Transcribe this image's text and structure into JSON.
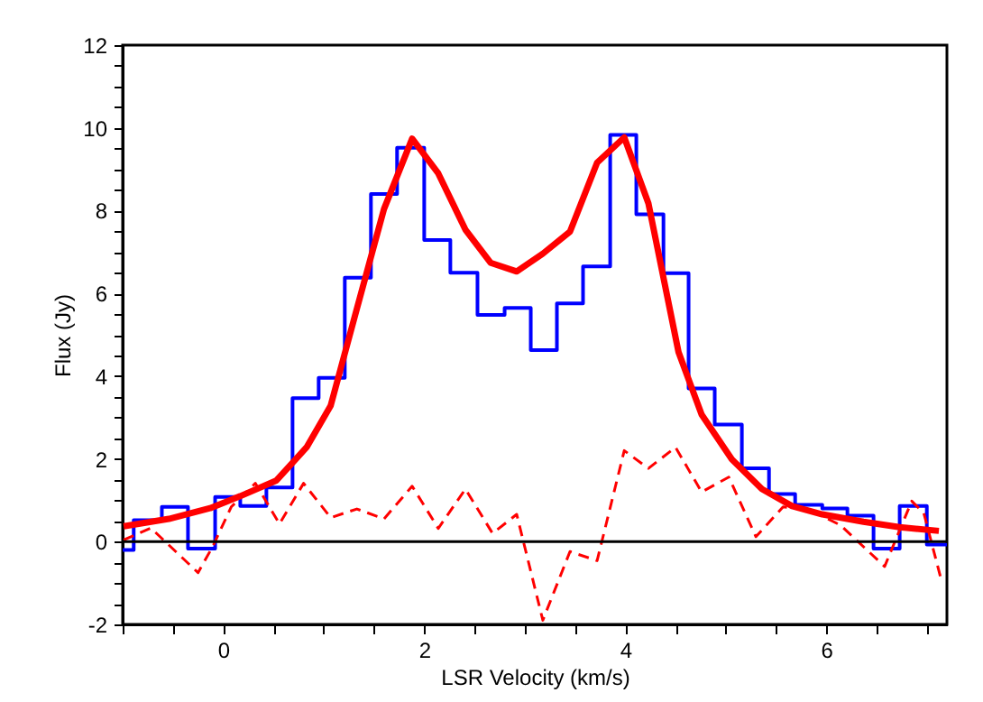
{
  "chart_data": {
    "type": "line",
    "xlabel": "LSR Velocity (km/s)",
    "ylabel": "Flux (Jy)",
    "xlim": [
      -1,
      7.2
    ],
    "ylim": [
      -2,
      12
    ],
    "xticks": [
      {
        "value": -1,
        "label": null
      },
      {
        "value": -0.5,
        "label": null
      },
      0,
      {
        "value": 0.5,
        "label": null
      },
      {
        "value": 1,
        "label": null
      },
      {
        "value": 1.5,
        "label": null
      },
      2,
      {
        "value": 2.5,
        "label": null
      },
      {
        "value": 3,
        "label": null
      },
      {
        "value": 3.5,
        "label": null
      },
      4,
      {
        "value": 4.5,
        "label": null
      },
      {
        "value": 5,
        "label": null
      },
      {
        "value": 5.5,
        "label": null
      },
      6,
      {
        "value": 6.5,
        "label": null
      },
      {
        "value": 7,
        "label": null
      }
    ],
    "yticks": [
      -2,
      {
        "value": -1.5,
        "label": null
      },
      {
        "value": -1,
        "label": null
      },
      {
        "value": -0.5,
        "label": null
      },
      0,
      {
        "value": 0.5,
        "label": null
      },
      {
        "value": 1,
        "label": null
      },
      {
        "value": 1.5,
        "label": null
      },
      2,
      {
        "value": 2.5,
        "label": null
      },
      {
        "value": 3,
        "label": null
      },
      {
        "value": 3.5,
        "label": null
      },
      4,
      {
        "value": 4.5,
        "label": null
      },
      {
        "value": 5,
        "label": null
      },
      {
        "value": 5.5,
        "label": null
      },
      6,
      {
        "value": 6.5,
        "label": null
      },
      {
        "value": 7,
        "label": null
      },
      {
        "value": 7.5,
        "label": null
      },
      8,
      {
        "value": 8.5,
        "label": null
      },
      {
        "value": 9,
        "label": null
      },
      {
        "value": 9.5,
        "label": null
      },
      10,
      {
        "value": 10.5,
        "label": null
      },
      {
        "value": 11,
        "label": null
      },
      {
        "value": 11.5,
        "label": null
      },
      12
    ],
    "grid": false,
    "marker": "none",
    "ref_lines": [
      {
        "axis": "y",
        "value": 0,
        "color": "#000000",
        "line_style": "solid"
      }
    ],
    "series": [
      {
        "type": "step",
        "color": "#0000ff",
        "line_style": "solid",
        "x": [
          -1,
          -0.89,
          -0.61,
          -0.35,
          -0.08,
          0.17,
          0.43,
          0.69,
          0.95,
          1.21,
          1.47,
          1.73,
          2.0,
          2.26,
          2.53,
          2.8,
          3.06,
          3.32,
          3.58,
          3.85,
          4.11,
          4.38,
          4.63,
          4.89,
          5.16,
          5.43,
          5.69,
          5.96,
          6.21,
          6.47,
          6.73,
          7.0,
          7.2
        ],
        "values": [
          -0.2,
          0.52,
          0.84,
          -0.17,
          1.08,
          0.86,
          1.31,
          3.47,
          3.96,
          6.38,
          8.4,
          9.52,
          7.29,
          6.5,
          5.48,
          5.65,
          4.63,
          5.76,
          6.65,
          9.83,
          7.91,
          6.49,
          3.7,
          2.83,
          1.77,
          1.15,
          0.89,
          0.8,
          0.63,
          -0.17,
          0.86,
          -0.07,
          -0.07
        ]
      },
      {
        "type": "line",
        "color": "#ff0000",
        "line_style": "solid",
        "x": [
          -0.99,
          -0.54,
          -0.13,
          0.17,
          0.53,
          0.83,
          1.07,
          1.31,
          1.6,
          1.88,
          2.14,
          2.41,
          2.66,
          2.92,
          3.18,
          3.45,
          3.72,
          3.99,
          4.23,
          4.53,
          4.76,
          5.06,
          5.36,
          5.66,
          5.96,
          6.37,
          6.73,
          7.12
        ],
        "values": [
          0.37,
          0.55,
          0.81,
          1.1,
          1.48,
          2.28,
          3.29,
          5.45,
          8.04,
          9.74,
          8.9,
          7.54,
          6.74,
          6.53,
          6.96,
          7.49,
          9.16,
          9.77,
          8.18,
          4.58,
          3.07,
          1.99,
          1.27,
          0.86,
          0.66,
          0.48,
          0.35,
          0.26
        ]
      },
      {
        "type": "line",
        "color": "#ff0000",
        "line_style": "dashed",
        "x": [
          -0.99,
          -0.72,
          -0.25,
          -0.1,
          0.08,
          0.32,
          0.56,
          0.8,
          1.07,
          1.33,
          1.6,
          1.88,
          2.14,
          2.41,
          2.68,
          2.92,
          3.18,
          3.45,
          3.72,
          3.99,
          4.23,
          4.5,
          4.76,
          5.03,
          5.3,
          5.57,
          5.84,
          6.14,
          6.58,
          6.85,
          6.97,
          7.14
        ],
        "values": [
          0.04,
          0.33,
          -0.75,
          -0.1,
          0.84,
          1.41,
          0.43,
          1.41,
          0.58,
          0.79,
          0.55,
          1.34,
          0.32,
          1.27,
          0.2,
          0.66,
          -1.9,
          -0.24,
          -0.46,
          2.2,
          1.77,
          2.28,
          1.2,
          1.56,
          0.12,
          0.84,
          0.76,
          0.4,
          -0.6,
          0.98,
          0.69,
          -0.89
        ]
      }
    ]
  }
}
